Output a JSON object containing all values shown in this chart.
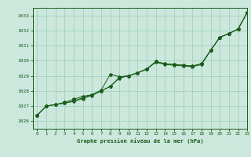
{
  "title": "Graphe pression niveau de la mer (hPa)",
  "xlim": [
    -0.5,
    23
  ],
  "ylim": [
    1025.5,
    1033.5
  ],
  "yticks": [
    1026,
    1027,
    1028,
    1029,
    1030,
    1031,
    1032,
    1033
  ],
  "xticks": [
    0,
    1,
    2,
    3,
    4,
    5,
    6,
    7,
    8,
    9,
    10,
    11,
    12,
    13,
    14,
    15,
    16,
    17,
    18,
    19,
    20,
    21,
    22,
    23
  ],
  "bg_color": "#cce8dd",
  "grid_color": "#99ccbb",
  "line_color": "#1a5c1a",
  "series1": [
    [
      0,
      1026.4
    ],
    [
      1,
      1027.0
    ],
    [
      2,
      1027.1
    ],
    [
      3,
      1027.2
    ],
    [
      4,
      1027.3
    ],
    [
      5,
      1027.5
    ],
    [
      6,
      1027.7
    ],
    [
      7,
      1028.0
    ],
    [
      8,
      1028.3
    ],
    [
      9,
      1028.9
    ],
    [
      10,
      1029.0
    ],
    [
      11,
      1029.2
    ],
    [
      12,
      1029.45
    ],
    [
      13,
      1029.95
    ],
    [
      14,
      1029.8
    ],
    [
      15,
      1029.75
    ],
    [
      16,
      1029.7
    ],
    [
      17,
      1029.65
    ],
    [
      18,
      1029.8
    ],
    [
      19,
      1030.7
    ],
    [
      20,
      1031.55
    ],
    [
      21,
      1031.8
    ],
    [
      22,
      1032.1
    ],
    [
      23,
      1033.2
    ]
  ],
  "series2": [
    [
      0,
      1026.4
    ],
    [
      1,
      1027.0
    ],
    [
      2,
      1027.1
    ],
    [
      3,
      1027.25
    ],
    [
      4,
      1027.45
    ],
    [
      5,
      1027.65
    ],
    [
      6,
      1027.75
    ],
    [
      7,
      1028.05
    ],
    [
      8,
      1029.1
    ],
    [
      9,
      1028.95
    ],
    [
      10,
      1029.0
    ],
    [
      11,
      1029.2
    ],
    [
      12,
      1029.45
    ],
    [
      13,
      1029.95
    ],
    [
      14,
      1029.8
    ],
    [
      15,
      1029.75
    ],
    [
      16,
      1029.7
    ],
    [
      17,
      1029.65
    ],
    [
      18,
      1029.8
    ],
    [
      19,
      1030.7
    ],
    [
      20,
      1031.55
    ],
    [
      21,
      1031.8
    ],
    [
      22,
      1032.1
    ],
    [
      23,
      1033.2
    ]
  ],
  "series3": [
    [
      0,
      1026.4
    ],
    [
      1,
      1027.0
    ],
    [
      2,
      1027.1
    ],
    [
      3,
      1027.2
    ],
    [
      4,
      1027.35
    ],
    [
      5,
      1027.55
    ],
    [
      6,
      1027.75
    ],
    [
      7,
      1028.0
    ],
    [
      8,
      1028.3
    ],
    [
      9,
      1028.85
    ],
    [
      10,
      1029.0
    ],
    [
      11,
      1029.2
    ],
    [
      12,
      1029.45
    ],
    [
      13,
      1029.9
    ],
    [
      14,
      1029.75
    ],
    [
      15,
      1029.7
    ],
    [
      16,
      1029.65
    ],
    [
      17,
      1029.6
    ],
    [
      18,
      1029.75
    ],
    [
      19,
      1030.7
    ],
    [
      20,
      1031.55
    ],
    [
      21,
      1031.8
    ],
    [
      22,
      1032.1
    ],
    [
      23,
      1033.2
    ]
  ]
}
